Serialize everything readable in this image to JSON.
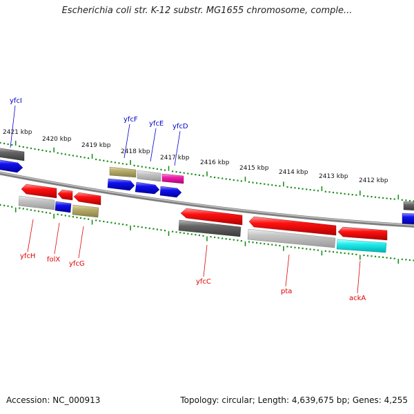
{
  "title": "Escherichia coli str. K-12 substr. MG1655 chromosome, comple...",
  "footer": {
    "accession": "Accession: NC_000913",
    "topology": "Topology: circular; Length: 4,639,675 bp; Genes: 4,255"
  },
  "colors": {
    "background": "#ffffff",
    "backbone": "#8a8a8a",
    "tick": "#1a8f1a",
    "forward_label": "#0000cc",
    "reverse_label": "#dd0000",
    "red": "#ee1111",
    "blue": "#1111ee",
    "dark_gray": "#666666",
    "light_gray": "#c4c4c4",
    "khaki": "#b8ae6c",
    "pink": "#ee22aa",
    "cyan": "#22eeee"
  },
  "scale_labels": [
    "2421 kbp",
    "2420 kbp",
    "2419 kbp",
    "2418 kbp",
    "2417 kbp",
    "2416 kbp",
    "2415 kbp",
    "2414 kbp",
    "2413 kbp",
    "2412 kbp"
  ],
  "forward_genes": [
    "yfcI",
    "yfcF",
    "yfcE",
    "yfcD"
  ],
  "reverse_genes": [
    "yfcH",
    "folX",
    "yfcG",
    "yfcC",
    "pta",
    "ackA"
  ]
}
